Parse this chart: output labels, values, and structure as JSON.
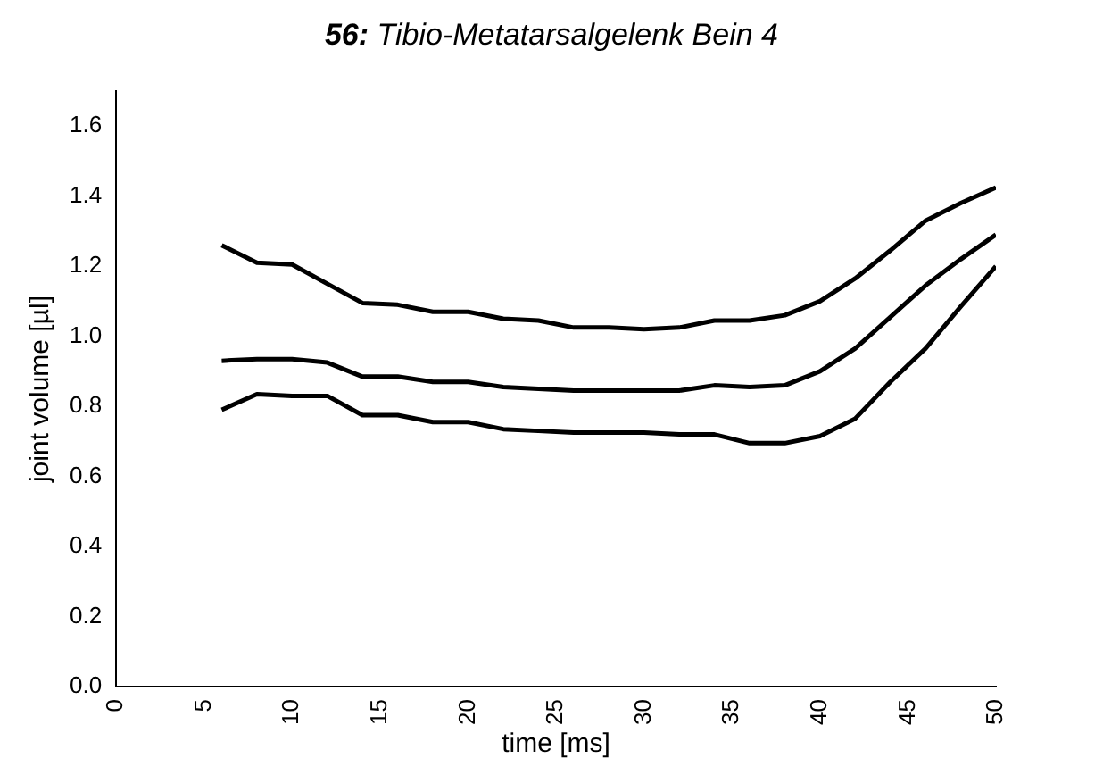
{
  "chart_data": {
    "type": "line",
    "title": "56: Tibio-Metatarsalgelenk Bein 4",
    "xlabel": "time [ms]",
    "ylabel": "joint volume [µl]",
    "x": [
      6,
      8,
      10,
      12,
      14,
      16,
      18,
      20,
      22,
      24,
      26,
      28,
      30,
      32,
      34,
      36,
      38,
      40,
      42,
      44,
      46,
      48,
      50
    ],
    "series": [
      {
        "color": "#000000",
        "values": [
          1.26,
          1.21,
          1.205,
          1.15,
          1.095,
          1.09,
          1.07,
          1.07,
          1.05,
          1.045,
          1.025,
          1.025,
          1.02,
          1.025,
          1.045,
          1.045,
          1.06,
          1.1,
          1.165,
          1.245,
          1.33,
          1.38,
          1.425
        ]
      },
      {
        "color": "#000000",
        "values": [
          0.93,
          0.935,
          0.935,
          0.925,
          0.885,
          0.885,
          0.87,
          0.87,
          0.855,
          0.85,
          0.845,
          0.845,
          0.845,
          0.845,
          0.86,
          0.855,
          0.86,
          0.9,
          0.965,
          1.055,
          1.145,
          1.22,
          1.29
        ]
      },
      {
        "color": "#000000",
        "values": [
          0.79,
          0.835,
          0.83,
          0.83,
          0.775,
          0.775,
          0.755,
          0.755,
          0.735,
          0.73,
          0.725,
          0.725,
          0.725,
          0.72,
          0.72,
          0.695,
          0.695,
          0.715,
          0.765,
          0.87,
          0.965,
          1.085,
          1.2
        ]
      }
    ],
    "xlim": [
      0,
      50
    ],
    "xticks": [
      0,
      5,
      10,
      15,
      20,
      25,
      30,
      35,
      40,
      45,
      50
    ],
    "ylim": [
      0,
      1.7
    ],
    "yticks": [
      {
        "value": 0,
        "label": "0.0"
      },
      {
        "value": 0.2,
        "label": "0.2"
      },
      {
        "value": 0.4,
        "label": "0.4"
      },
      {
        "value": 0.6,
        "label": "0.6"
      },
      {
        "value": 0.8,
        "label": "0.8"
      },
      {
        "value": 1,
        "label": "1.0"
      },
      {
        "value": 1.2,
        "label": "1.2"
      },
      {
        "value": 1.4,
        "label": "1.4"
      },
      {
        "value": 1.6,
        "label": "1.6"
      }
    ],
    "grid": false,
    "legend": false,
    "marker": "none",
    "line_style": "solid"
  }
}
